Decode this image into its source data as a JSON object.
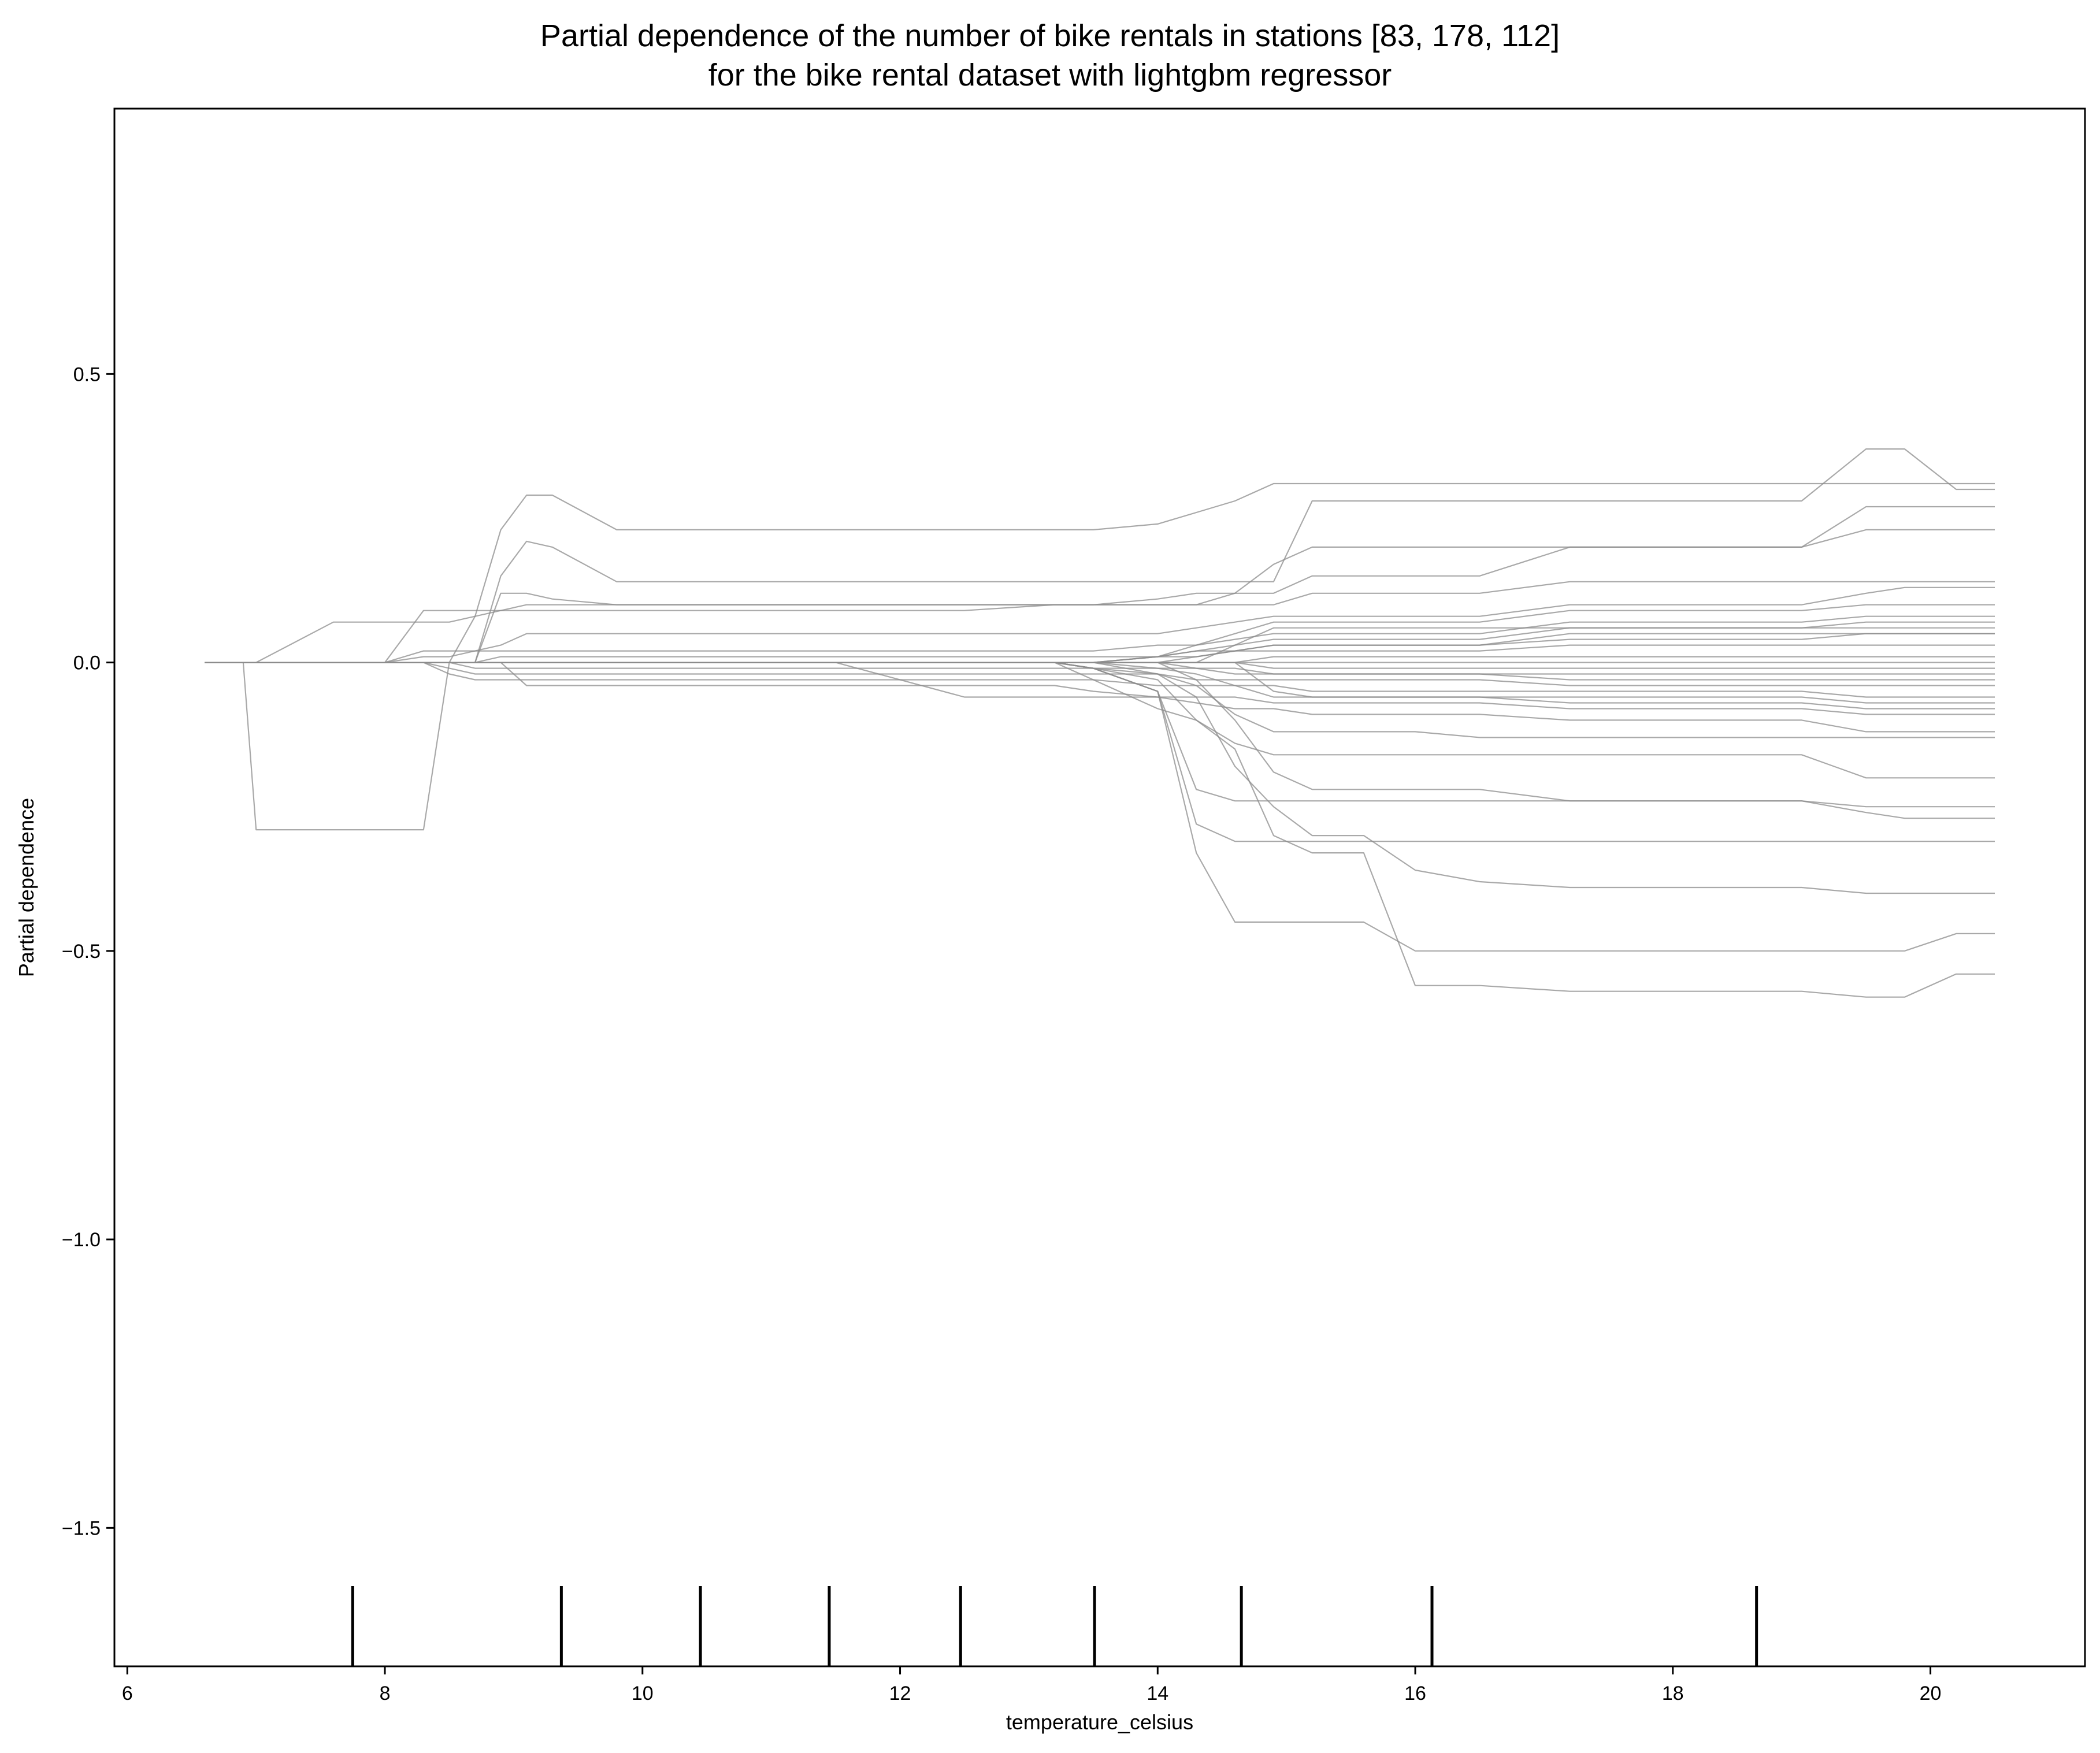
{
  "chart_data": {
    "type": "line",
    "title": [
      "Partial dependence of the number of bike rentals in stations [83, 178, 112]",
      "for the bike rental dataset with lightgbm regressor"
    ],
    "xlabel": "temperature_celsius",
    "ylabel": "Partial dependence",
    "xlim": [
      5.9,
      21.2
    ],
    "ylim": [
      -1.74,
      0.96
    ],
    "x_ticks": [
      6,
      8,
      10,
      12,
      14,
      16,
      18,
      20
    ],
    "y_ticks": [
      -1.5,
      -1.0,
      -0.5,
      0.0,
      0.5
    ],
    "x_tick_labels": [
      "6",
      "8",
      "10",
      "12",
      "14",
      "16",
      "18",
      "20"
    ],
    "y_tick_labels": [
      "−1.5",
      "−1.0",
      "−0.5",
      "0.0",
      "0.5"
    ],
    "grid": false,
    "line_color": "#8c8c8c",
    "rug_color": "#000000",
    "rug_x": [
      7.75,
      9.37,
      10.45,
      11.45,
      12.47,
      13.51,
      14.65,
      16.13,
      18.65
    ],
    "x": [
      6.6,
      6.9,
      7.0,
      7.6,
      8.0,
      8.3,
      8.5,
      8.7,
      8.9,
      9.1,
      9.3,
      9.8,
      10.5,
      11.5,
      12.5,
      13.2,
      13.5,
      14.0,
      14.3,
      14.6,
      14.9,
      15.2,
      15.6,
      16.0,
      16.5,
      17.2,
      18.0,
      19.0,
      19.5,
      19.8,
      20.2,
      20.5
    ],
    "series": [
      {
        "values": [
          0.0,
          0.0,
          0.0,
          0.0,
          0.0,
          0.0,
          0.0,
          0.0,
          0.0,
          0.0,
          0.0,
          0.0,
          0.0,
          0.0,
          0.0,
          0.0,
          0.0,
          0.0,
          0.0,
          0.0,
          0.0,
          0.0,
          0.0,
          0.0,
          0.0,
          0.0,
          0.0,
          0.0,
          0.0,
          0.0,
          0.0,
          0.0
        ]
      },
      {
        "values": [
          0.0,
          0.0,
          -0.29,
          -0.29,
          -0.29,
          -0.29,
          0.0,
          0.0,
          0.0,
          0.0,
          0.0,
          0.0,
          0.0,
          0.0,
          0.0,
          0.0,
          0.0,
          0.01,
          0.01,
          0.02,
          0.03,
          0.03,
          0.03,
          0.03,
          0.03,
          0.05,
          0.05,
          0.05,
          0.05,
          0.05,
          0.05,
          0.05
        ]
      },
      {
        "values": [
          0.0,
          0.0,
          0.0,
          0.0,
          0.0,
          0.0,
          0.0,
          0.08,
          0.23,
          0.29,
          0.29,
          0.23,
          0.23,
          0.23,
          0.23,
          0.23,
          0.23,
          0.24,
          0.26,
          0.28,
          0.31,
          0.31,
          0.31,
          0.31,
          0.31,
          0.31,
          0.31,
          0.31,
          0.31,
          0.31,
          0.31,
          0.31
        ]
      },
      {
        "values": [
          0.0,
          0.0,
          0.0,
          0.0,
          0.0,
          0.0,
          0.0,
          0.0,
          0.15,
          0.21,
          0.2,
          0.14,
          0.14,
          0.14,
          0.14,
          0.14,
          0.14,
          0.14,
          0.14,
          0.14,
          0.14,
          0.28,
          0.28,
          0.28,
          0.28,
          0.28,
          0.28,
          0.28,
          0.37,
          0.37,
          0.3,
          0.3
        ]
      },
      {
        "values": [
          0.0,
          0.0,
          0.0,
          0.0,
          0.0,
          0.0,
          0.0,
          0.0,
          0.12,
          0.12,
          0.11,
          0.1,
          0.1,
          0.1,
          0.1,
          0.1,
          0.1,
          0.1,
          0.1,
          0.12,
          0.17,
          0.2,
          0.2,
          0.2,
          0.2,
          0.2,
          0.2,
          0.2,
          0.27,
          0.27,
          0.27,
          0.27
        ]
      },
      {
        "values": [
          0.0,
          0.0,
          0.0,
          0.0,
          0.0,
          0.09,
          0.09,
          0.09,
          0.09,
          0.09,
          0.09,
          0.09,
          0.09,
          0.09,
          0.09,
          0.1,
          0.1,
          0.1,
          0.1,
          0.1,
          0.1,
          0.12,
          0.12,
          0.12,
          0.12,
          0.14,
          0.14,
          0.14,
          0.14,
          0.14,
          0.14,
          0.14
        ]
      },
      {
        "values": [
          0.0,
          0.0,
          0.0,
          0.07,
          0.07,
          0.07,
          0.07,
          0.08,
          0.09,
          0.1,
          0.1,
          0.1,
          0.1,
          0.1,
          0.1,
          0.1,
          0.1,
          0.11,
          0.12,
          0.12,
          0.12,
          0.15,
          0.15,
          0.15,
          0.15,
          0.2,
          0.2,
          0.2,
          0.23,
          0.23,
          0.23,
          0.23
        ]
      },
      {
        "values": [
          0.0,
          0.0,
          0.0,
          0.0,
          0.0,
          0.02,
          0.02,
          0.02,
          0.03,
          0.05,
          0.05,
          0.05,
          0.05,
          0.05,
          0.05,
          0.05,
          0.05,
          0.05,
          0.06,
          0.07,
          0.08,
          0.08,
          0.08,
          0.08,
          0.08,
          0.1,
          0.1,
          0.1,
          0.12,
          0.13,
          0.13,
          0.13
        ]
      },
      {
        "values": [
          0.0,
          0.0,
          0.0,
          0.0,
          0.0,
          0.01,
          0.01,
          0.02,
          0.02,
          0.02,
          0.02,
          0.02,
          0.02,
          0.02,
          0.02,
          0.02,
          0.02,
          0.03,
          0.03,
          0.04,
          0.05,
          0.05,
          0.05,
          0.05,
          0.05,
          0.07,
          0.07,
          0.07,
          0.08,
          0.08,
          0.08,
          0.08
        ]
      },
      {
        "values": [
          0.0,
          0.0,
          0.0,
          0.0,
          0.0,
          0.0,
          0.0,
          0.0,
          0.01,
          0.01,
          0.01,
          0.01,
          0.01,
          0.01,
          0.01,
          0.01,
          0.01,
          0.01,
          0.02,
          0.02,
          0.03,
          0.03,
          0.03,
          0.03,
          0.03,
          0.04,
          0.04,
          0.04,
          0.05,
          0.05,
          0.05,
          0.05
        ]
      },
      {
        "values": [
          0.0,
          0.0,
          0.0,
          0.0,
          0.0,
          0.0,
          -0.02,
          -0.03,
          -0.03,
          -0.03,
          -0.03,
          -0.03,
          -0.03,
          -0.03,
          -0.03,
          -0.03,
          -0.03,
          -0.04,
          -0.04,
          -0.04,
          -0.04,
          -0.05,
          -0.05,
          -0.05,
          -0.05,
          -0.05,
          -0.05,
          -0.05,
          -0.06,
          -0.06,
          -0.06,
          -0.06
        ]
      },
      {
        "values": [
          0.0,
          0.0,
          0.0,
          0.0,
          0.0,
          0.0,
          -0.01,
          -0.02,
          -0.02,
          -0.02,
          -0.02,
          -0.02,
          -0.02,
          -0.02,
          -0.02,
          -0.02,
          -0.02,
          -0.02,
          -0.03,
          -0.03,
          -0.03,
          -0.03,
          -0.03,
          -0.03,
          -0.03,
          -0.04,
          -0.04,
          -0.04,
          -0.04,
          -0.04,
          -0.04,
          -0.04
        ]
      },
      {
        "values": [
          0.0,
          0.0,
          0.0,
          0.0,
          0.0,
          0.0,
          0.0,
          -0.01,
          -0.01,
          -0.01,
          -0.01,
          -0.01,
          -0.01,
          -0.01,
          -0.01,
          -0.01,
          -0.01,
          -0.01,
          -0.01,
          -0.01,
          -0.02,
          -0.02,
          -0.02,
          -0.02,
          -0.02,
          -0.02,
          -0.02,
          -0.02,
          -0.02,
          -0.02,
          -0.02,
          -0.02
        ]
      },
      {
        "values": [
          0.0,
          0.0,
          0.0,
          0.0,
          0.0,
          0.0,
          0.0,
          0.0,
          0.0,
          -0.04,
          -0.04,
          -0.04,
          -0.04,
          -0.04,
          -0.04,
          -0.04,
          -0.05,
          -0.06,
          -0.07,
          -0.08,
          -0.08,
          -0.09,
          -0.09,
          -0.09,
          -0.09,
          -0.1,
          -0.1,
          -0.1,
          -0.12,
          -0.12,
          -0.12,
          -0.12
        ]
      },
      {
        "values": [
          0.0,
          0.0,
          0.0,
          0.0,
          0.0,
          0.0,
          0.0,
          0.0,
          0.0,
          0.0,
          0.0,
          0.0,
          0.0,
          0.0,
          0.0,
          0.0,
          -0.03,
          -0.08,
          -0.1,
          -0.14,
          -0.16,
          -0.16,
          -0.16,
          -0.16,
          -0.16,
          -0.16,
          -0.16,
          -0.16,
          -0.2,
          -0.2,
          -0.2,
          -0.2
        ]
      },
      {
        "values": [
          0.0,
          0.0,
          0.0,
          0.0,
          0.0,
          0.0,
          0.0,
          0.0,
          0.0,
          0.0,
          0.0,
          0.0,
          0.0,
          0.0,
          0.0,
          0.0,
          -0.01,
          -0.05,
          -0.22,
          -0.24,
          -0.24,
          -0.24,
          -0.24,
          -0.24,
          -0.24,
          -0.24,
          -0.24,
          -0.24,
          -0.26,
          -0.27,
          -0.27,
          -0.27
        ]
      },
      {
        "values": [
          0.0,
          0.0,
          0.0,
          0.0,
          0.0,
          0.0,
          0.0,
          0.0,
          0.0,
          0.0,
          0.0,
          0.0,
          0.0,
          0.0,
          0.0,
          0.0,
          -0.01,
          -0.05,
          -0.28,
          -0.31,
          -0.31,
          -0.31,
          -0.31,
          -0.31,
          -0.31,
          -0.31,
          -0.31,
          -0.31,
          -0.31,
          -0.31,
          -0.31,
          -0.31
        ]
      },
      {
        "values": [
          0.0,
          0.0,
          0.0,
          0.0,
          0.0,
          0.0,
          0.0,
          0.0,
          0.0,
          0.0,
          0.0,
          0.0,
          0.0,
          0.0,
          0.0,
          0.0,
          -0.01,
          -0.05,
          -0.33,
          -0.45,
          -0.45,
          -0.45,
          -0.45,
          -0.5,
          -0.5,
          -0.5,
          -0.5,
          -0.5,
          -0.5,
          -0.5,
          -0.47,
          -0.47
        ]
      },
      {
        "values": [
          0.0,
          0.0,
          0.0,
          0.0,
          0.0,
          0.0,
          0.0,
          0.0,
          0.0,
          0.0,
          0.0,
          0.0,
          0.0,
          0.0,
          0.0,
          0.0,
          -0.01,
          -0.03,
          -0.1,
          -0.15,
          -0.3,
          -0.33,
          -0.33,
          -0.56,
          -0.56,
          -0.57,
          -0.57,
          -0.57,
          -0.58,
          -0.58,
          -0.54,
          -0.54
        ]
      },
      {
        "values": [
          0.0,
          0.0,
          0.0,
          0.0,
          0.0,
          0.0,
          0.0,
          0.0,
          0.0,
          0.0,
          0.0,
          0.0,
          0.0,
          0.0,
          0.0,
          0.0,
          -0.01,
          -0.02,
          -0.06,
          -0.18,
          -0.25,
          -0.3,
          -0.3,
          -0.36,
          -0.38,
          -0.39,
          -0.39,
          -0.39,
          -0.4,
          -0.4,
          -0.4,
          -0.4
        ]
      },
      {
        "values": [
          0.0,
          0.0,
          0.0,
          0.0,
          0.0,
          0.0,
          0.0,
          0.0,
          0.0,
          0.0,
          0.0,
          0.0,
          0.0,
          0.0,
          -0.06,
          -0.06,
          -0.06,
          -0.06,
          -0.06,
          -0.06,
          -0.07,
          -0.07,
          -0.07,
          -0.07,
          -0.07,
          -0.08,
          -0.08,
          -0.08,
          -0.09,
          -0.09,
          -0.09,
          -0.09
        ]
      },
      {
        "values": [
          0.0,
          0.0,
          0.0,
          0.0,
          0.0,
          0.0,
          0.0,
          0.0,
          0.0,
          0.0,
          0.0,
          0.0,
          0.0,
          0.0,
          0.0,
          0.0,
          0.0,
          -0.02,
          -0.04,
          -0.09,
          -0.12,
          -0.12,
          -0.12,
          -0.12,
          -0.13,
          -0.13,
          -0.13,
          -0.13,
          -0.13,
          -0.13,
          -0.13,
          -0.13
        ]
      },
      {
        "values": [
          0.0,
          0.0,
          0.0,
          0.0,
          0.0,
          0.0,
          0.0,
          0.0,
          0.0,
          0.0,
          0.0,
          0.0,
          0.0,
          0.0,
          0.0,
          0.0,
          0.0,
          0.0,
          -0.03,
          -0.1,
          -0.19,
          -0.22,
          -0.22,
          -0.22,
          -0.22,
          -0.24,
          -0.24,
          -0.24,
          -0.25,
          -0.25,
          -0.25,
          -0.25
        ]
      },
      {
        "values": [
          0.0,
          0.0,
          0.0,
          0.0,
          0.0,
          0.0,
          0.0,
          0.0,
          0.0,
          0.0,
          0.0,
          0.0,
          0.0,
          0.0,
          0.0,
          0.0,
          0.0,
          0.01,
          0.03,
          0.05,
          0.07,
          0.07,
          0.07,
          0.07,
          0.07,
          0.09,
          0.09,
          0.09,
          0.1,
          0.1,
          0.1,
          0.1
        ]
      },
      {
        "values": [
          0.0,
          0.0,
          0.0,
          0.0,
          0.0,
          0.0,
          0.0,
          0.0,
          0.0,
          0.0,
          0.0,
          0.0,
          0.0,
          0.0,
          0.0,
          0.0,
          0.0,
          0.01,
          0.02,
          0.03,
          0.04,
          0.04,
          0.04,
          0.04,
          0.04,
          0.06,
          0.06,
          0.06,
          0.07,
          0.07,
          0.07,
          0.07
        ]
      },
      {
        "values": [
          0.0,
          0.0,
          0.0,
          0.0,
          0.0,
          0.0,
          0.0,
          0.0,
          0.0,
          0.0,
          0.0,
          0.0,
          0.0,
          0.0,
          0.0,
          0.0,
          0.0,
          0.0,
          0.01,
          0.02,
          0.02,
          0.02,
          0.02,
          0.02,
          0.02,
          0.03,
          0.03,
          0.03,
          0.03,
          0.03,
          0.03,
          0.03
        ]
      },
      {
        "values": [
          0.0,
          0.0,
          0.0,
          0.0,
          0.0,
          0.0,
          0.0,
          0.0,
          0.0,
          0.0,
          0.0,
          0.0,
          0.0,
          0.0,
          0.0,
          0.0,
          0.0,
          0.0,
          -0.01,
          -0.02,
          -0.02,
          -0.02,
          -0.02,
          -0.02,
          -0.02,
          -0.03,
          -0.03,
          -0.03,
          -0.03,
          -0.03,
          -0.03,
          -0.03
        ]
      },
      {
        "values": [
          0.0,
          0.0,
          0.0,
          0.0,
          0.0,
          0.0,
          0.0,
          0.0,
          0.0,
          0.0,
          0.0,
          0.0,
          0.0,
          0.0,
          0.0,
          0.0,
          0.0,
          -0.01,
          -0.02,
          -0.04,
          -0.06,
          -0.06,
          -0.06,
          -0.06,
          -0.06,
          -0.07,
          -0.07,
          -0.07,
          -0.08,
          -0.08,
          -0.08,
          -0.08
        ]
      },
      {
        "values": [
          0.0,
          0.0,
          0.0,
          0.0,
          0.0,
          0.0,
          0.0,
          0.0,
          0.0,
          0.0,
          0.0,
          0.0,
          0.0,
          0.0,
          0.0,
          0.0,
          0.0,
          0.0,
          0.0,
          0.0,
          -0.05,
          -0.06,
          -0.06,
          -0.06,
          -0.06,
          -0.06,
          -0.06,
          -0.06,
          -0.07,
          -0.07,
          -0.07,
          -0.07
        ]
      },
      {
        "values": [
          0.0,
          0.0,
          0.0,
          0.0,
          0.0,
          0.0,
          0.0,
          0.0,
          0.0,
          0.0,
          0.0,
          0.0,
          0.0,
          0.0,
          0.0,
          0.0,
          0.0,
          0.0,
          0.0,
          0.03,
          0.06,
          0.06,
          0.06,
          0.06,
          0.06,
          0.06,
          0.06,
          0.06,
          0.06,
          0.06,
          0.06,
          0.06
        ]
      },
      {
        "values": [
          0.0,
          0.0,
          0.0,
          0.0,
          0.0,
          0.0,
          0.0,
          0.0,
          0.0,
          0.0,
          0.0,
          0.0,
          0.0,
          0.0,
          0.0,
          0.0,
          0.0,
          0.0,
          0.0,
          0.0,
          0.01,
          0.01,
          0.01,
          0.01,
          0.01,
          0.01,
          0.01,
          0.01,
          0.01,
          0.01,
          0.01,
          0.01
        ]
      },
      {
        "values": [
          0.0,
          0.0,
          0.0,
          0.0,
          0.0,
          0.0,
          0.0,
          0.0,
          0.0,
          0.0,
          0.0,
          0.0,
          0.0,
          0.0,
          0.0,
          0.0,
          0.0,
          0.0,
          0.0,
          0.0,
          -0.01,
          -0.01,
          -0.01,
          -0.01,
          -0.01,
          -0.01,
          -0.01,
          -0.01,
          -0.01,
          -0.01,
          -0.01,
          -0.01
        ]
      }
    ]
  }
}
